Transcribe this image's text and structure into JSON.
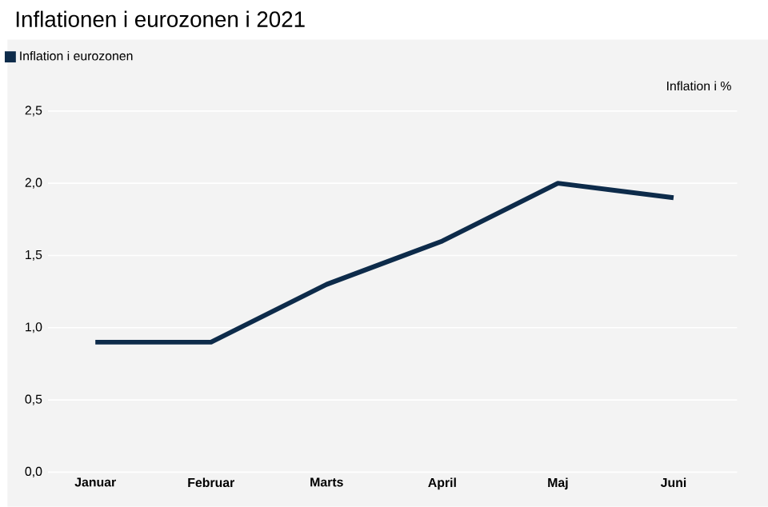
{
  "chart_data": {
    "type": "line",
    "title": "Inflationen i eurozonen i 2021",
    "ylabel": "Inflation i %",
    "categories": [
      "Januar",
      "Februar",
      "Marts",
      "April",
      "Maj",
      "Juni"
    ],
    "series": [
      {
        "name": "Inflation i eurozonen",
        "color": "#0d2b4a",
        "values": [
          0.9,
          0.9,
          1.3,
          1.6,
          2.0,
          1.9
        ]
      }
    ],
    "ylim": [
      0,
      2.5
    ],
    "yticks": [
      {
        "value": 0,
        "label": "0,0"
      },
      {
        "value": 0.5,
        "label": "0,5"
      },
      {
        "value": 1,
        "label": "1,0"
      },
      {
        "value": 1.5,
        "label": "1,5"
      },
      {
        "value": 2,
        "label": "2,0"
      },
      {
        "value": 2.5,
        "label": "2,5"
      }
    ],
    "grid": "y",
    "legend": "top left",
    "marker": "none",
    "line_style": "solid"
  }
}
